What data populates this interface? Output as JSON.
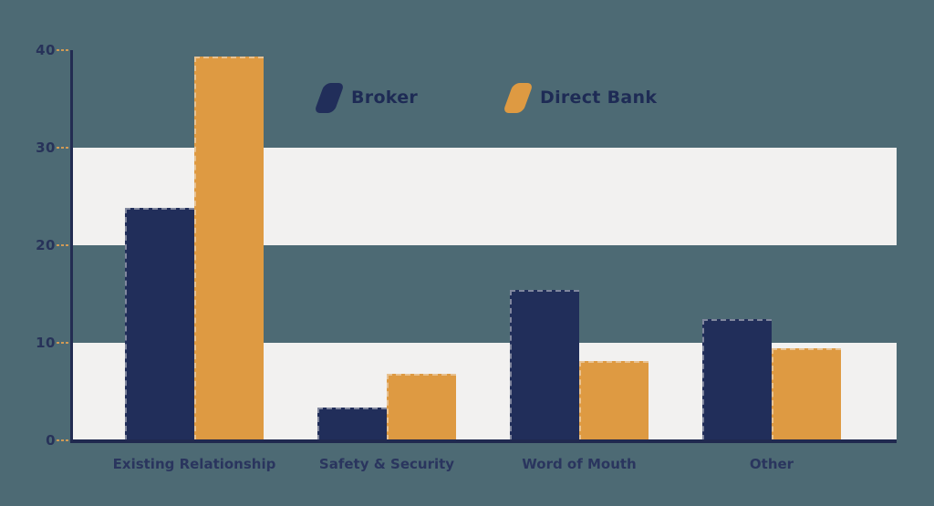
{
  "chart_data": {
    "type": "bar",
    "title": "",
    "xlabel": "",
    "ylabel": "",
    "categories": [
      "Existing Relationship",
      "Safety & Security",
      "Word of Mouth",
      "Other"
    ],
    "series": [
      {
        "name": "Broker",
        "color": "#212e5a",
        "values": [
          23.8,
          3.4,
          15.4,
          12.4
        ]
      },
      {
        "name": "Direct Bank",
        "color": "#de9a42",
        "values": [
          39.3,
          6.8,
          8.1,
          9.4
        ]
      }
    ],
    "ylim": [
      0,
      40
    ],
    "y_ticks": [
      0,
      10,
      20,
      30,
      40
    ],
    "shaded_bands": [
      [
        0,
        10
      ],
      [
        20,
        30
      ]
    ],
    "grid": "off",
    "legend_position": "top-center"
  },
  "colors": {
    "background": "#4d6a74",
    "band": "#f2f1f0",
    "axis": "#232c52",
    "tick_dash": "#d19a55",
    "label_text": "#273259"
  }
}
